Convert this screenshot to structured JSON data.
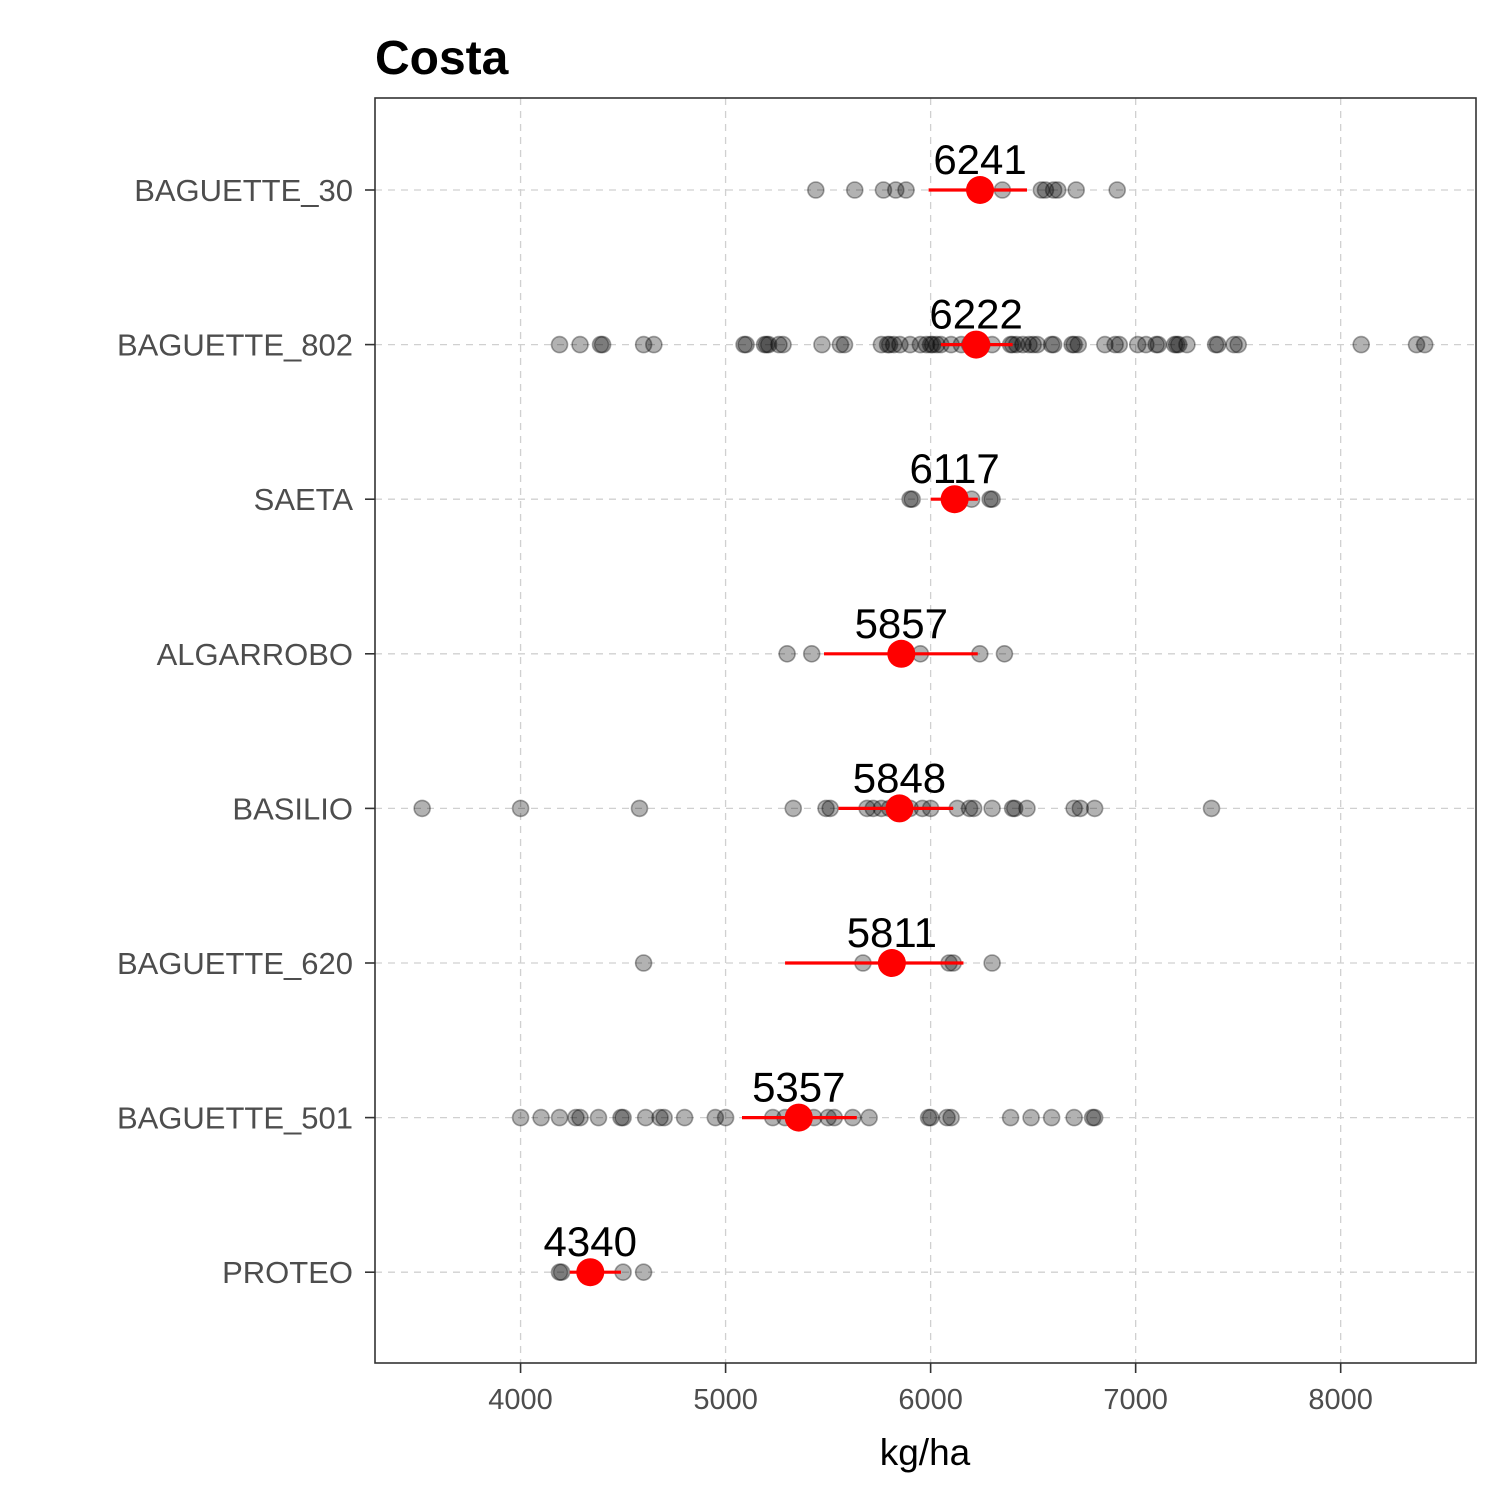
{
  "chart_data": {
    "type": "scatter",
    "title": "Costa",
    "xlabel": "kg/ha",
    "ylabel": "",
    "xlim": [
      3290,
      8660
    ],
    "xticks": [
      4000,
      5000,
      6000,
      7000,
      8000
    ],
    "grid": true,
    "legend": "none",
    "colors": {
      "point": "#000000",
      "mean": "#ff0000",
      "grid": "#d0d0d0",
      "panel_border": "#333333"
    },
    "categories": [
      "BAGUETTE_30",
      "BAGUETTE_802",
      "SAETA",
      "ALGARROBO",
      "BASILIO",
      "BAGUETTE_620",
      "BAGUETTE_501",
      "PROTEO"
    ],
    "series": [
      {
        "category": "BAGUETTE_30",
        "mean": 6241,
        "mean_label": "6241",
        "ci": [
          5990,
          6470
        ],
        "points": [
          5440,
          5630,
          5770,
          5830,
          5880,
          6350,
          6540,
          6560,
          6600,
          6620,
          6710,
          6910
        ]
      },
      {
        "category": "BAGUETTE_802",
        "mean": 6222,
        "mean_label": "6222",
        "ci": [
          6050,
          6400
        ],
        "points": [
          4190,
          4290,
          4390,
          4400,
          4600,
          4650,
          5090,
          5100,
          5190,
          5200,
          5210,
          5260,
          5280,
          5470,
          5560,
          5580,
          5760,
          5790,
          5800,
          5820,
          5850,
          5900,
          5950,
          5980,
          6000,
          6010,
          6030,
          6050,
          6100,
          6150,
          6190,
          6200,
          6250,
          6300,
          6390,
          6400,
          6420,
          6450,
          6480,
          6500,
          6520,
          6590,
          6600,
          6690,
          6700,
          6720,
          6850,
          6900,
          6920,
          7010,
          7050,
          7100,
          7110,
          7190,
          7200,
          7210,
          7250,
          7390,
          7400,
          7480,
          7500,
          8100,
          8370,
          8410
        ]
      },
      {
        "category": "SAETA",
        "mean": 6117,
        "mean_label": "6117",
        "ci": [
          6000,
          6230
        ],
        "points": [
          5900,
          5910,
          6200,
          6290,
          6300
        ]
      },
      {
        "category": "ALGARROBO",
        "mean": 5857,
        "mean_label": "5857",
        "ci": [
          5480,
          6230
        ],
        "points": [
          5300,
          5420,
          5950,
          6240,
          6360
        ]
      },
      {
        "category": "BASILIO",
        "mean": 5848,
        "mean_label": "5848",
        "ci": [
          5550,
          6110
        ],
        "points": [
          3520,
          4000,
          4580,
          5330,
          5490,
          5510,
          5690,
          5720,
          5760,
          5800,
          5900,
          5960,
          6000,
          6130,
          6190,
          6210,
          6300,
          6400,
          6410,
          6470,
          6700,
          6730,
          6800,
          7370
        ]
      },
      {
        "category": "BAGUETTE_620",
        "mean": 5811,
        "mean_label": "5811",
        "ci": [
          5290,
          6160
        ],
        "points": [
          4600,
          5670,
          6090,
          6110,
          6300
        ]
      },
      {
        "category": "BAGUETTE_501",
        "mean": 5357,
        "mean_label": "5357",
        "ci": [
          5080,
          5640
        ],
        "points": [
          4000,
          4100,
          4190,
          4270,
          4290,
          4380,
          4490,
          4500,
          4610,
          4680,
          4700,
          4800,
          4950,
          5000,
          5230,
          5290,
          5350,
          5430,
          5500,
          5530,
          5620,
          5700,
          5990,
          6000,
          6080,
          6100,
          6390,
          6490,
          6590,
          6700,
          6790,
          6800
        ]
      },
      {
        "category": "PROTEO",
        "mean": 4340,
        "mean_label": "4340",
        "ci": [
          4240,
          4490
        ],
        "points": [
          4190,
          4200,
          4500,
          4600
        ]
      }
    ]
  }
}
